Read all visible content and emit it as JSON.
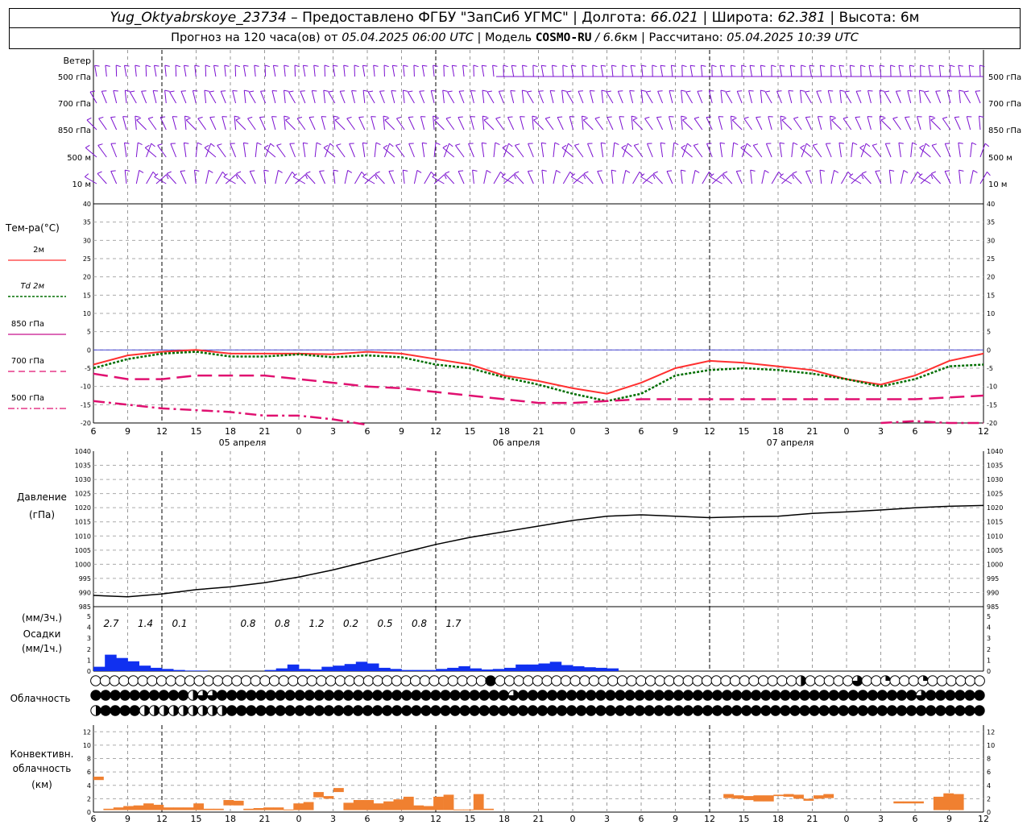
{
  "header": {
    "station": "Yug_Oktyabrskoye_23734",
    "provided": " – Предоставлено ФГБУ \"ЗапСиб УГМС\" | Долгота: ",
    "lon": "66.021",
    "lat_label": " | Широта: ",
    "lat": "62.381",
    "alt_label": " | Высота: 6м",
    "forecast": "Прогноз на 120 часа(ов) от ",
    "start": "05.04.2025 06:00 UTC",
    "model_label": " | Модель ",
    "model": "COSMO-RU",
    "res": " / 6.6",
    "res_unit": "км | Рассчитано: ",
    "computed": "05.04.2025 10:39 UTC"
  },
  "labels": {
    "wind": "Ветер",
    "wind_levels": [
      "500 гПа",
      "700 гПа",
      "850 гПа",
      "500 м",
      "10  м"
    ],
    "temp_title": "Тем-ра(°C)",
    "temp_legend": [
      "2м",
      "Td  2м",
      "850 гПа",
      "700 гПа",
      "500 гПа"
    ],
    "pressure_title": "Давление",
    "pressure_unit": "(гПа)",
    "precip_unit3": "(мм/3ч.)",
    "precip_title": "Осадки",
    "precip_unit1": "(мм/1ч.)",
    "cloud_title": "Облачность",
    "conv_title1": "Конвективн.",
    "conv_title2": "облачность",
    "conv_unit": "(км)",
    "dates": [
      "05 апреля",
      "06 апреля",
      "07 апреля"
    ]
  },
  "colors": {
    "wind": "#7b10d0",
    "t2m": "#ff3030",
    "td2m": "#006e00",
    "t850": "#c8108c",
    "t700": "#e01070",
    "t500": "#e01070",
    "precip": "#1030f0",
    "conv": "#f08030",
    "zero": "#3030d0"
  },
  "chart_data": [
    {
      "type": "line",
      "title": "Тем-ра(°C)",
      "x_hours_utc": [
        6,
        9,
        12,
        15,
        18,
        21,
        0,
        3,
        6,
        9,
        12,
        15,
        18,
        21,
        0,
        3,
        6,
        9,
        12,
        15,
        18,
        21,
        0,
        3,
        6,
        9,
        12
      ],
      "ylim": [
        -20,
        40
      ],
      "series": [
        {
          "name": "2м",
          "values": [
            -4,
            -1.5,
            -0.5,
            0,
            -1,
            -1,
            -1,
            -1.2,
            -0.5,
            -1,
            -2.5,
            -4,
            -7,
            -8.5,
            -10.5,
            -12,
            -9,
            -5,
            -3,
            -3.5,
            -4.5,
            -5.5,
            -8,
            -9.5,
            -7,
            -3,
            -1
          ]
        },
        {
          "name": "Td  2м",
          "values": [
            -5,
            -2.5,
            -1,
            -0.5,
            -1.8,
            -1.8,
            -1.2,
            -2,
            -1.5,
            -2,
            -4,
            -5,
            -7.5,
            -9.5,
            -12,
            -14,
            -12,
            -7,
            -5.5,
            -5,
            -5.5,
            -6.5,
            -8,
            -10,
            -8,
            -4.5,
            -4
          ]
        },
        {
          "name": "700 гПа",
          "values": [
            -6.5,
            -8,
            -8,
            -7,
            -7,
            -7,
            -8,
            -9,
            -10,
            -10.5,
            -11.5,
            -12.5,
            -13.5,
            -14.5,
            -14.5,
            -14,
            -13.5,
            -13.5,
            -13.5,
            -13.5,
            -13.5,
            -13.5,
            -13.5,
            -13.5,
            -13.5,
            -13,
            -12.5
          ]
        },
        {
          "name": "500 гПа",
          "values": [
            -14,
            -15,
            -16,
            -16.5,
            -17,
            -18,
            -18,
            -19,
            -20.5,
            null,
            null,
            null,
            null,
            null,
            null,
            null,
            null,
            null,
            null,
            null,
            null,
            null,
            null,
            -20,
            -19.5,
            -20,
            -20
          ]
        }
      ]
    },
    {
      "type": "line",
      "title": "Давление",
      "x_hours_utc": [
        6,
        9,
        12,
        15,
        18,
        21,
        0,
        3,
        6,
        9,
        12,
        15,
        18,
        21,
        0,
        3,
        6,
        9,
        12,
        15,
        18,
        21,
        0,
        3,
        6,
        9,
        12
      ],
      "ylim": [
        985,
        1040
      ],
      "series": [
        {
          "name": "",
          "values": [
            989,
            988.5,
            989.5,
            991,
            992,
            993.5,
            995.5,
            998,
            1001,
            1004,
            1007,
            1009.5,
            1011.5,
            1013.5,
            1015.5,
            1017,
            1017.5,
            1017,
            1016.5,
            1016.8,
            1017,
            1018,
            1018.5,
            1019.2,
            1020,
            1020.5,
            1020.8
          ]
        }
      ]
    },
    {
      "type": "bar",
      "title": "Осадки",
      "ylim": [
        0,
        5
      ],
      "labels_3h": [
        "2.7",
        "1.4",
        "0.1",
        "",
        "0.8",
        "0.8",
        "1.2",
        "0.2",
        "0.5",
        "0.8",
        "1.7"
      ],
      "hourly_values": [
        0.4,
        1.5,
        1.2,
        0.9,
        0.5,
        0.3,
        0.2,
        0.1,
        0.05,
        0.05,
        0,
        0,
        0,
        0,
        0,
        0.1,
        0.25,
        0.6,
        0.2,
        0.15,
        0.4,
        0.5,
        0.65,
        0.85,
        0.7,
        0.3,
        0.2,
        0.1,
        0.1,
        0.1,
        0.2,
        0.3,
        0.45,
        0.25,
        0.15,
        0.2,
        0.3,
        0.6,
        0.6,
        0.7,
        0.85,
        0.55,
        0.45,
        0.35,
        0.3,
        0.25
      ]
    },
    {
      "type": "bar",
      "title": "Конвективн. облачность",
      "ylim": [
        0,
        13
      ],
      "series": [
        {
          "name": "",
          "values": [
            {
              "x": 0,
              "b": 4.8,
              "t": 5.3
            },
            {
              "x": 1,
              "b": 0.3,
              "t": 0.5
            },
            {
              "x": 2,
              "b": 0.3,
              "t": 0.7
            },
            {
              "x": 3,
              "b": 0.3,
              "t": 0.9
            },
            {
              "x": 4,
              "b": 0.3,
              "t": 1.0
            },
            {
              "x": 5,
              "b": 0.3,
              "t": 1.3
            },
            {
              "x": 6,
              "b": 0.3,
              "t": 1.1
            },
            {
              "x": 7,
              "b": 0.3,
              "t": 0.7
            },
            {
              "x": 8,
              "b": 0.3,
              "t": 0.7
            },
            {
              "x": 9,
              "b": 0.3,
              "t": 0.7
            },
            {
              "x": 10,
              "b": 0.3,
              "t": 1.3
            },
            {
              "x": 11,
              "b": 0.3,
              "t": 0.5
            },
            {
              "x": 12,
              "b": 0.3,
              "t": 0.5
            },
            {
              "x": 13,
              "b": 1.0,
              "t": 1.8
            },
            {
              "x": 14,
              "b": 1.0,
              "t": 1.7
            },
            {
              "x": 15,
              "b": 0.3,
              "t": 0.5
            },
            {
              "x": 16,
              "b": 0.3,
              "t": 0.6
            },
            {
              "x": 17,
              "b": 0.3,
              "t": 0.7
            },
            {
              "x": 18,
              "b": 0.3,
              "t": 0.7
            },
            {
              "x": 19,
              "b": 0.3,
              "t": 0.4
            },
            {
              "x": 20,
              "b": 0.3,
              "t": 1.3
            },
            {
              "x": 21,
              "b": 0.3,
              "t": 1.5
            },
            {
              "x": 22,
              "b": 2.2,
              "t": 3.0
            },
            {
              "x": 23,
              "b": 2.0,
              "t": 2.4
            },
            {
              "x": 24,
              "b": 3.0,
              "t": 3.6
            },
            {
              "x": 25,
              "b": 0.3,
              "t": 1.4
            },
            {
              "x": 26,
              "b": 0.3,
              "t": 1.8
            },
            {
              "x": 27,
              "b": 0.3,
              "t": 1.8
            },
            {
              "x": 28,
              "b": 0.3,
              "t": 1.3
            },
            {
              "x": 29,
              "b": 0.3,
              "t": 1.6
            },
            {
              "x": 30,
              "b": 0.3,
              "t": 1.9
            },
            {
              "x": 31,
              "b": 0.3,
              "t": 2.3
            },
            {
              "x": 32,
              "b": 0.3,
              "t": 1.0
            },
            {
              "x": 33,
              "b": 0.3,
              "t": 0.9
            },
            {
              "x": 34,
              "b": 0.3,
              "t": 2.3
            },
            {
              "x": 35,
              "b": 0.3,
              "t": 2.6
            },
            {
              "x": 36,
              "b": 0.3,
              "t": 0.4
            },
            {
              "x": 37,
              "b": 0.3,
              "t": 0.4
            },
            {
              "x": 38,
              "b": 0.3,
              "t": 2.7
            },
            {
              "x": 39,
              "b": 0.3,
              "t": 0.5
            },
            {
              "x": 63,
              "b": 2.1,
              "t": 2.7
            },
            {
              "x": 64,
              "b": 2.0,
              "t": 2.5
            },
            {
              "x": 65,
              "b": 1.8,
              "t": 2.4
            },
            {
              "x": 66,
              "b": 1.6,
              "t": 2.5
            },
            {
              "x": 67,
              "b": 1.6,
              "t": 2.5
            },
            {
              "x": 68,
              "b": 2.4,
              "t": 2.6
            },
            {
              "x": 69,
              "b": 2.3,
              "t": 2.7
            },
            {
              "x": 70,
              "b": 2.0,
              "t": 2.6
            },
            {
              "x": 71,
              "b": 1.7,
              "t": 2.0
            },
            {
              "x": 72,
              "b": 2.0,
              "t": 2.5
            },
            {
              "x": 73,
              "b": 2.1,
              "t": 2.7
            },
            {
              "x": 80,
              "b": 1.3,
              "t": 1.6
            },
            {
              "x": 81,
              "b": 1.3,
              "t": 1.6
            },
            {
              "x": 82,
              "b": 1.3,
              "t": 1.6
            },
            {
              "x": 84,
              "b": 0.3,
              "t": 2.3
            },
            {
              "x": 85,
              "b": 0.3,
              "t": 2.8
            },
            {
              "x": 86,
              "b": 0.3,
              "t": 2.7
            }
          ]
        }
      ]
    }
  ],
  "axes": {
    "x_ticks": [
      "6",
      "9",
      "12",
      "15",
      "18",
      "21",
      "0",
      "3",
      "6",
      "9",
      "12",
      "15",
      "18",
      "21",
      "0",
      "3",
      "6",
      "9",
      "12",
      "15",
      "18",
      "21",
      "0",
      "3",
      "6",
      "9",
      "12"
    ],
    "temp_ticks": [
      "40",
      "35",
      "30",
      "25",
      "20",
      "15",
      "10",
      "5",
      "0",
      "-5",
      "-10",
      "-15",
      "-20"
    ],
    "pres_ticks": [
      "1040",
      "1035",
      "1030",
      "1025",
      "1020",
      "1015",
      "1010",
      "1005",
      "1000",
      "995",
      "990",
      "985"
    ],
    "precip_ticks": [
      "5",
      "4",
      "3",
      "2",
      "1",
      "0"
    ],
    "conv_ticks": [
      "12",
      "10",
      "8",
      "6",
      "4",
      "2",
      "0"
    ]
  },
  "clouds": {
    "rows": [
      "0000000000000000000000000000000000000000000000000000000000000000000000000000000000004500000000000000000000000000000000000000000000000000000000000000002000000000003000011000000111000000000002",
      "4444444444444444444423333444444444444444444444444444444444444444444444444444444444444333444444444444444444444444444444444444444444444444444444444444444444444444444444444433444444444443",
      "2444444442222222222222222222444444444444444444444444444444444444444444444444444444444444444444444444444444444444444444444444444444444444444444444444444444444444424444444444444444444444"
    ]
  }
}
